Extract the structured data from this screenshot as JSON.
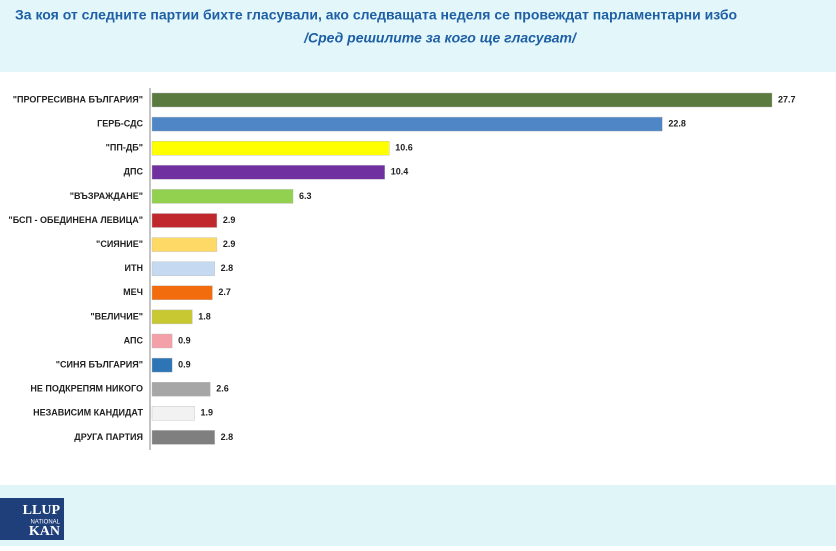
{
  "chart_data": {
    "type": "hbar",
    "title": "За коя от следните партии бихте  гласували,  ако следващата неделя се провеждат парламентарни избо",
    "subtitle": "/Сред решилите за кого ще гласуват/",
    "categories": [
      "\"ПРОГРЕСИВНА БЪЛГАРИЯ\"",
      "ГЕРБ-СДС",
      "\"ПП-ДБ\"",
      "ДПС",
      "\"ВЪЗРАЖДАНЕ\"",
      "\"БСП - ОБЕДИНЕНА ЛЕВИЦА\"",
      "\"СИЯНИЕ\"",
      "ИТН",
      "МЕЧ",
      "\"ВЕЛИЧИЕ\"",
      "АПС",
      "\"СИНЯ БЪЛГАРИЯ\"",
      "НЕ ПОДКРЕПЯМ НИКОГО",
      "НЕЗАВИСИМ КАНДИДАТ",
      "ДРУГА ПАРТИЯ"
    ],
    "values": [
      27.7,
      22.8,
      10.6,
      10.4,
      6.3,
      2.9,
      2.9,
      2.8,
      2.7,
      1.8,
      0.9,
      0.9,
      2.6,
      1.9,
      2.8
    ],
    "colors": [
      "#5b7a3f",
      "#4f86c6",
      "#ffff00",
      "#7030a0",
      "#92d050",
      "#c0282d",
      "#ffd966",
      "#c5d9f1",
      "#f26c0d",
      "#c8c832",
      "#f4a0a8",
      "#2e75b6",
      "#a6a6a6",
      "#f2f2f2",
      "#7f7f7f"
    ]
  },
  "logo": {
    "line1": "LLUP",
    "line2": "NATIONAL",
    "line3": "KAN"
  }
}
